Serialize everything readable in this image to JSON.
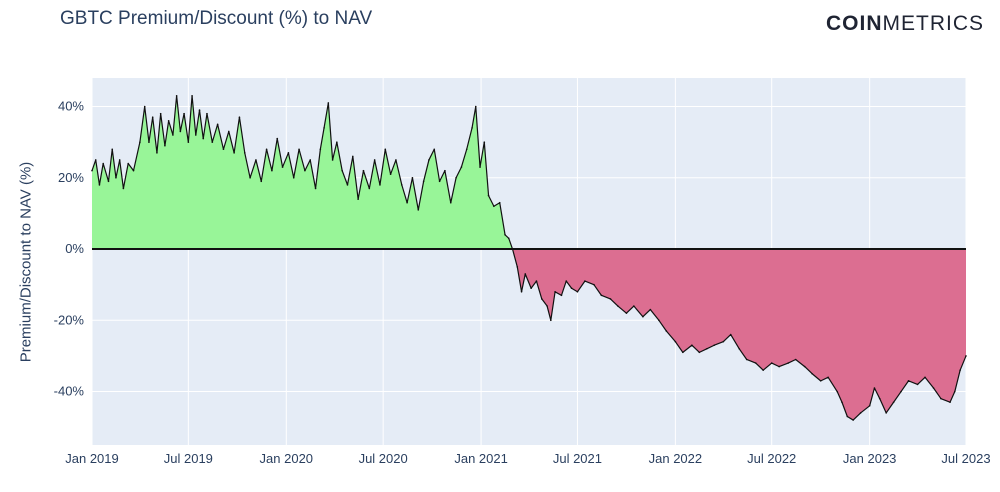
{
  "header": {
    "title": "GBTC Premium/Discount (%) to NAV",
    "logo_bold": "COIN",
    "logo_light": "METRICS"
  },
  "chart_data": {
    "type": "area",
    "title": "GBTC Premium/Discount (%) to NAV",
    "xlabel": "",
    "ylabel": "Premium/Discount to NAV (%)",
    "x_range": [
      "2019-01-01",
      "2023-07-01"
    ],
    "ylim": [
      -55,
      48
    ],
    "x_ticks": [
      {
        "date": "2019-01-01",
        "label": "Jan 2019"
      },
      {
        "date": "2019-07-01",
        "label": "Jul 2019"
      },
      {
        "date": "2020-01-01",
        "label": "Jan 2020"
      },
      {
        "date": "2020-07-01",
        "label": "Jul 2020"
      },
      {
        "date": "2021-01-01",
        "label": "Jan 2021"
      },
      {
        "date": "2021-07-01",
        "label": "Jul 2021"
      },
      {
        "date": "2022-01-01",
        "label": "Jan 2022"
      },
      {
        "date": "2022-07-01",
        "label": "Jul 2022"
      },
      {
        "date": "2023-01-01",
        "label": "Jan 2023"
      },
      {
        "date": "2023-07-01",
        "label": "Jul 2023"
      }
    ],
    "y_ticks": [
      {
        "value": 40,
        "label": "40%"
      },
      {
        "value": 20,
        "label": "20%"
      },
      {
        "value": 0,
        "label": "0%"
      },
      {
        "value": -20,
        "label": "-20%"
      },
      {
        "value": -40,
        "label": "-40%"
      }
    ],
    "grid": true,
    "series": [
      {
        "points": [
          [
            "2019-01-01",
            22
          ],
          [
            "2019-01-08",
            25
          ],
          [
            "2019-01-15",
            18
          ],
          [
            "2019-01-22",
            24
          ],
          [
            "2019-02-01",
            19
          ],
          [
            "2019-02-08",
            28
          ],
          [
            "2019-02-15",
            20
          ],
          [
            "2019-02-22",
            25
          ],
          [
            "2019-03-01",
            17
          ],
          [
            "2019-03-10",
            24
          ],
          [
            "2019-03-20",
            22
          ],
          [
            "2019-04-01",
            30
          ],
          [
            "2019-04-10",
            40
          ],
          [
            "2019-04-18",
            30
          ],
          [
            "2019-04-25",
            37
          ],
          [
            "2019-05-03",
            27
          ],
          [
            "2019-05-10",
            38
          ],
          [
            "2019-05-18",
            29
          ],
          [
            "2019-05-25",
            36
          ],
          [
            "2019-06-02",
            32
          ],
          [
            "2019-06-09",
            43
          ],
          [
            "2019-06-16",
            33
          ],
          [
            "2019-06-23",
            38
          ],
          [
            "2019-07-01",
            30
          ],
          [
            "2019-07-08",
            43
          ],
          [
            "2019-07-15",
            32
          ],
          [
            "2019-07-22",
            39
          ],
          [
            "2019-07-29",
            31
          ],
          [
            "2019-08-05",
            38
          ],
          [
            "2019-08-15",
            30
          ],
          [
            "2019-08-25",
            35
          ],
          [
            "2019-09-05",
            28
          ],
          [
            "2019-09-15",
            33
          ],
          [
            "2019-09-25",
            27
          ],
          [
            "2019-10-05",
            37
          ],
          [
            "2019-10-15",
            27
          ],
          [
            "2019-10-25",
            20
          ],
          [
            "2019-11-05",
            25
          ],
          [
            "2019-11-15",
            19
          ],
          [
            "2019-11-25",
            28
          ],
          [
            "2019-12-05",
            22
          ],
          [
            "2019-12-15",
            31
          ],
          [
            "2019-12-25",
            23
          ],
          [
            "2020-01-05",
            27
          ],
          [
            "2020-01-15",
            20
          ],
          [
            "2020-01-25",
            28
          ],
          [
            "2020-02-05",
            22
          ],
          [
            "2020-02-15",
            25
          ],
          [
            "2020-02-25",
            17
          ],
          [
            "2020-03-05",
            28
          ],
          [
            "2020-03-12",
            34
          ],
          [
            "2020-03-20",
            41
          ],
          [
            "2020-03-28",
            25
          ],
          [
            "2020-04-05",
            30
          ],
          [
            "2020-04-15",
            22
          ],
          [
            "2020-04-25",
            18
          ],
          [
            "2020-05-05",
            26
          ],
          [
            "2020-05-15",
            14
          ],
          [
            "2020-05-25",
            22
          ],
          [
            "2020-06-05",
            17
          ],
          [
            "2020-06-15",
            25
          ],
          [
            "2020-06-25",
            18
          ],
          [
            "2020-07-05",
            28
          ],
          [
            "2020-07-15",
            21
          ],
          [
            "2020-07-25",
            25
          ],
          [
            "2020-08-05",
            18
          ],
          [
            "2020-08-15",
            13
          ],
          [
            "2020-08-25",
            20
          ],
          [
            "2020-09-05",
            11
          ],
          [
            "2020-09-15",
            19
          ],
          [
            "2020-09-25",
            25
          ],
          [
            "2020-10-05",
            28
          ],
          [
            "2020-10-15",
            19
          ],
          [
            "2020-10-25",
            22
          ],
          [
            "2020-11-05",
            13
          ],
          [
            "2020-11-15",
            20
          ],
          [
            "2020-11-25",
            23
          ],
          [
            "2020-12-05",
            28
          ],
          [
            "2020-12-15",
            34
          ],
          [
            "2020-12-22",
            40
          ],
          [
            "2020-12-30",
            23
          ],
          [
            "2021-01-07",
            30
          ],
          [
            "2021-01-15",
            15
          ],
          [
            "2021-01-25",
            12
          ],
          [
            "2021-02-05",
            13
          ],
          [
            "2021-02-15",
            4
          ],
          [
            "2021-02-22",
            3
          ],
          [
            "2021-03-01",
            0
          ],
          [
            "2021-03-10",
            -5
          ],
          [
            "2021-03-18",
            -12
          ],
          [
            "2021-03-25",
            -7
          ],
          [
            "2021-04-05",
            -11
          ],
          [
            "2021-04-15",
            -9
          ],
          [
            "2021-04-25",
            -14
          ],
          [
            "2021-05-05",
            -16
          ],
          [
            "2021-05-12",
            -20
          ],
          [
            "2021-05-20",
            -12
          ],
          [
            "2021-06-01",
            -13
          ],
          [
            "2021-06-10",
            -9
          ],
          [
            "2021-06-20",
            -11
          ],
          [
            "2021-07-01",
            -12
          ],
          [
            "2021-07-15",
            -9
          ],
          [
            "2021-08-01",
            -10
          ],
          [
            "2021-08-15",
            -13
          ],
          [
            "2021-09-01",
            -14
          ],
          [
            "2021-09-15",
            -16
          ],
          [
            "2021-10-01",
            -18
          ],
          [
            "2021-10-15",
            -16
          ],
          [
            "2021-11-01",
            -19
          ],
          [
            "2021-11-15",
            -17
          ],
          [
            "2021-12-01",
            -20
          ],
          [
            "2021-12-15",
            -23
          ],
          [
            "2022-01-01",
            -26
          ],
          [
            "2022-01-15",
            -29
          ],
          [
            "2022-02-01",
            -27
          ],
          [
            "2022-02-15",
            -29
          ],
          [
            "2022-03-01",
            -28
          ],
          [
            "2022-03-15",
            -27
          ],
          [
            "2022-04-01",
            -26
          ],
          [
            "2022-04-15",
            -24
          ],
          [
            "2022-05-01",
            -28
          ],
          [
            "2022-05-15",
            -31
          ],
          [
            "2022-06-01",
            -32
          ],
          [
            "2022-06-15",
            -34
          ],
          [
            "2022-07-01",
            -32
          ],
          [
            "2022-07-15",
            -33
          ],
          [
            "2022-08-01",
            -32
          ],
          [
            "2022-08-15",
            -31
          ],
          [
            "2022-09-01",
            -33
          ],
          [
            "2022-09-15",
            -35
          ],
          [
            "2022-10-01",
            -37
          ],
          [
            "2022-10-15",
            -36
          ],
          [
            "2022-11-01",
            -40
          ],
          [
            "2022-11-10",
            -43
          ],
          [
            "2022-11-20",
            -47
          ],
          [
            "2022-12-01",
            -48
          ],
          [
            "2022-12-15",
            -46
          ],
          [
            "2023-01-01",
            -44
          ],
          [
            "2023-01-10",
            -39
          ],
          [
            "2023-01-20",
            -42
          ],
          [
            "2023-02-01",
            -46
          ],
          [
            "2023-02-15",
            -43
          ],
          [
            "2023-03-01",
            -40
          ],
          [
            "2023-03-15",
            -37
          ],
          [
            "2023-04-01",
            -38
          ],
          [
            "2023-04-15",
            -36
          ],
          [
            "2023-05-01",
            -39
          ],
          [
            "2023-05-15",
            -42
          ],
          [
            "2023-06-01",
            -43
          ],
          [
            "2023-06-10",
            -40
          ],
          [
            "2023-06-20",
            -34
          ],
          [
            "2023-07-01",
            -30
          ]
        ]
      }
    ],
    "colors": {
      "positive_fill": "#98f598",
      "negative_fill": "#dc6e91",
      "line": "#111111",
      "plot_bg": "#e5ecf6",
      "grid": "#ffffff",
      "text": "#2a3f5f"
    }
  }
}
